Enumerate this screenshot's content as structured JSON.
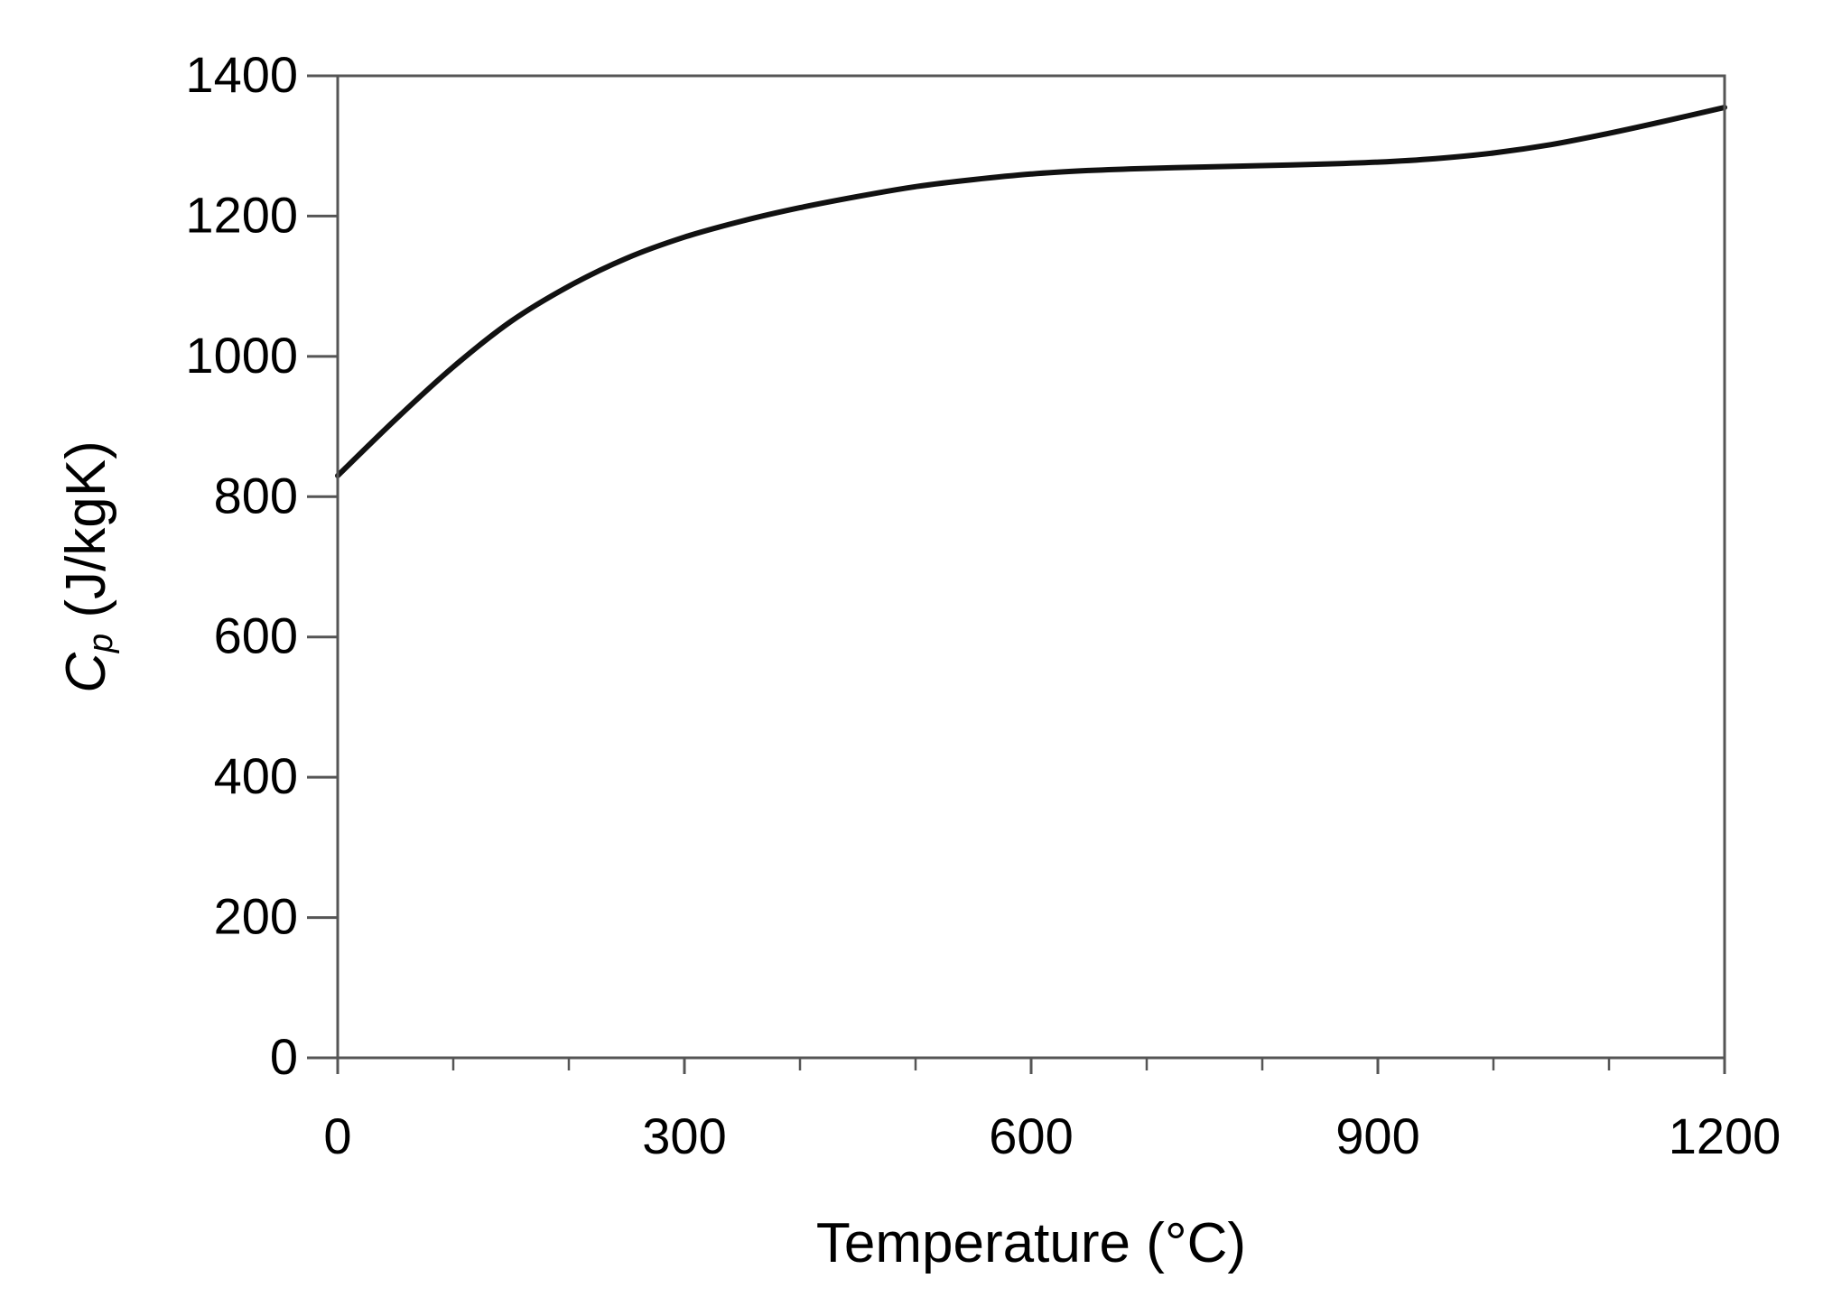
{
  "chart_data": {
    "type": "line",
    "title": "",
    "xlabel": "Temperature (°C)",
    "ylabel_symbol": "C",
    "ylabel_subscript": "p",
    "ylabel_unit": " (J/kgK)",
    "xlim": [
      0,
      1200
    ],
    "ylim": [
      0,
      1400
    ],
    "x_ticks": [
      0,
      300,
      600,
      900,
      1200
    ],
    "x_tick_labels": [
      "0",
      "300",
      "600",
      "900",
      "1200"
    ],
    "x_minor_step": 100,
    "y_ticks": [
      0,
      200,
      400,
      600,
      800,
      1000,
      1200,
      1400
    ],
    "y_tick_labels": [
      "0",
      "200",
      "400",
      "600",
      "800",
      "1000",
      "1200",
      "1400"
    ],
    "grid": false,
    "line_color": "#111111",
    "series": [
      {
        "x": [
          0,
          50,
          100,
          150,
          200,
          250,
          300,
          350,
          400,
          450,
          500,
          550,
          600,
          650,
          700,
          750,
          800,
          850,
          900,
          950,
          1000,
          1050,
          1100,
          1150,
          1200
        ],
        "y": [
          830,
          910,
          985,
          1050,
          1100,
          1140,
          1170,
          1193,
          1212,
          1228,
          1242,
          1252,
          1260,
          1265,
          1268,
          1270,
          1272,
          1274,
          1277,
          1282,
          1290,
          1302,
          1318,
          1336,
          1355
        ]
      }
    ]
  }
}
